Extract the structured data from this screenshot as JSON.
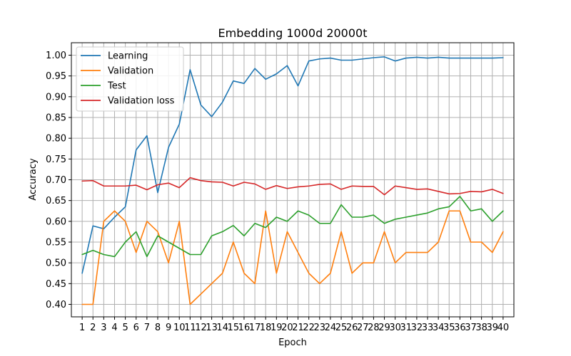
{
  "chart_data": {
    "type": "line",
    "title": "Embedding 1000d 20000t",
    "xlabel": "Epoch",
    "ylabel": "Accuracy",
    "x": [
      1,
      2,
      3,
      4,
      5,
      6,
      7,
      8,
      9,
      10,
      11,
      12,
      13,
      14,
      15,
      16,
      17,
      18,
      19,
      20,
      21,
      22,
      23,
      24,
      25,
      26,
      27,
      28,
      29,
      30,
      31,
      32,
      33,
      34,
      35,
      36,
      37,
      38,
      39,
      40
    ],
    "xlim": [
      0.0,
      41.0
    ],
    "ylim": [
      0.37,
      1.03
    ],
    "yticks": [
      0.4,
      0.45,
      0.5,
      0.55,
      0.6,
      0.65,
      0.7,
      0.75,
      0.8,
      0.85,
      0.9,
      0.95,
      1.0
    ],
    "ytick_labels": [
      "0.40",
      "0.45",
      "0.50",
      "0.55",
      "0.60",
      "0.65",
      "0.70",
      "0.75",
      "0.80",
      "0.85",
      "0.90",
      "0.95",
      "1.00"
    ],
    "grid": true,
    "legend_position": "top-left",
    "series": [
      {
        "name": "Learning",
        "color": "#1f77b4",
        "values": [
          0.475,
          0.589,
          0.582,
          0.61,
          0.635,
          0.772,
          0.806,
          0.669,
          0.778,
          0.834,
          0.965,
          0.88,
          0.852,
          0.887,
          0.938,
          0.932,
          0.968,
          0.942,
          0.955,
          0.975,
          0.926,
          0.986,
          0.991,
          0.993,
          0.988,
          0.988,
          0.991,
          0.994,
          0.996,
          0.986,
          0.993,
          0.995,
          0.993,
          0.995,
          0.993,
          0.993,
          0.993,
          0.993,
          0.993,
          0.994
        ]
      },
      {
        "name": "Validation",
        "color": "#ff7f0e",
        "values": [
          0.4,
          0.4,
          0.6,
          0.625,
          0.6,
          0.525,
          0.6,
          0.575,
          0.5,
          0.6,
          0.4,
          0.425,
          0.45,
          0.475,
          0.55,
          0.475,
          0.45,
          0.625,
          0.475,
          0.575,
          0.525,
          0.475,
          0.45,
          0.475,
          0.575,
          0.475,
          0.5,
          0.5,
          0.575,
          0.5,
          0.525,
          0.525,
          0.525,
          0.55,
          0.625,
          0.625,
          0.55,
          0.55,
          0.525,
          0.575
        ]
      },
      {
        "name": "Test",
        "color": "#2ca02c",
        "values": [
          0.52,
          0.53,
          0.52,
          0.515,
          0.55,
          0.575,
          0.515,
          0.565,
          0.55,
          0.535,
          0.52,
          0.52,
          0.565,
          0.575,
          0.59,
          0.565,
          0.595,
          0.585,
          0.61,
          0.6,
          0.625,
          0.615,
          0.595,
          0.595,
          0.64,
          0.61,
          0.61,
          0.615,
          0.595,
          0.605,
          0.61,
          0.615,
          0.62,
          0.63,
          0.635,
          0.66,
          0.625,
          0.63,
          0.6,
          0.625
        ]
      },
      {
        "name": "Validation loss",
        "color": "#d62728",
        "values": [
          0.697,
          0.698,
          0.685,
          0.685,
          0.685,
          0.687,
          0.676,
          0.688,
          0.692,
          0.681,
          0.705,
          0.698,
          0.695,
          0.694,
          0.685,
          0.694,
          0.69,
          0.677,
          0.686,
          0.679,
          0.683,
          0.685,
          0.689,
          0.69,
          0.677,
          0.685,
          0.684,
          0.684,
          0.664,
          0.685,
          0.681,
          0.677,
          0.678,
          0.672,
          0.666,
          0.667,
          0.672,
          0.671,
          0.677,
          0.667
        ]
      }
    ]
  }
}
